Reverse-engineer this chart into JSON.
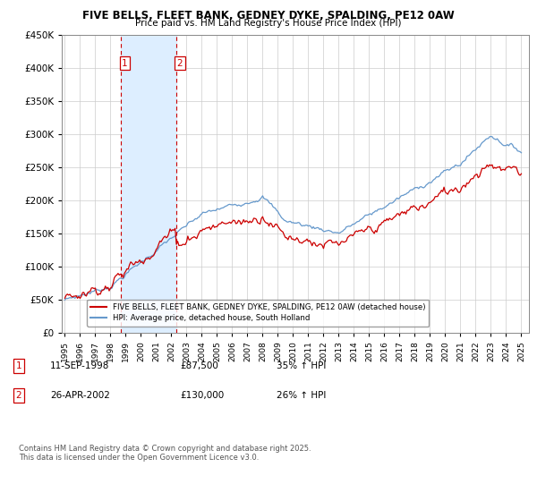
{
  "title1": "FIVE BELLS, FLEET BANK, GEDNEY DYKE, SPALDING, PE12 0AW",
  "title2": "Price paid vs. HM Land Registry's House Price Index (HPI)",
  "legend_line1": "FIVE BELLS, FLEET BANK, GEDNEY DYKE, SPALDING, PE12 0AW (detached house)",
  "legend_line2": "HPI: Average price, detached house, South Holland",
  "footer": "Contains HM Land Registry data © Crown copyright and database right 2025.\nThis data is licensed under the Open Government Licence v3.0.",
  "transaction1_date": "11-SEP-1998",
  "transaction1_price": "£87,500",
  "transaction1_hpi": "35% ↑ HPI",
  "transaction2_date": "26-APR-2002",
  "transaction2_price": "£130,000",
  "transaction2_hpi": "26% ↑ HPI",
  "vline1_x": 1998.7,
  "vline2_x": 2002.3,
  "ylim": [
    0,
    450000
  ],
  "xlim": [
    1994.8,
    2025.5
  ],
  "red_color": "#cc0000",
  "blue_color": "#6699cc",
  "shade_color": "#ddeeff"
}
